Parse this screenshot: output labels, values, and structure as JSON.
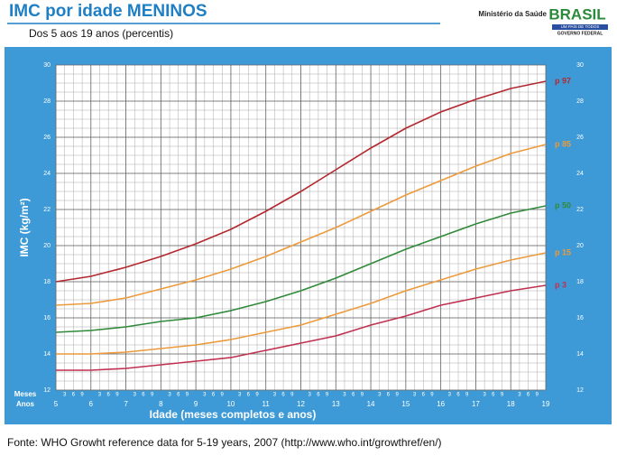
{
  "header": {
    "ministry": "Ministério da Saúde",
    "brand": "BRASIL",
    "motto": "UM PAÍS DE TODOS",
    "government": "GOVERNO FEDERAL"
  },
  "chart_data": {
    "type": "line",
    "title": "IMC por idade MENINOS",
    "subtitle": "Dos 5 aos 19 anos (percentis)",
    "x_label": "Idade (meses completos e anos)",
    "y_label": "IMC (kg/m²)",
    "row_labels": {
      "months": "Meses",
      "years": "Anos"
    },
    "month_labels": [
      "3",
      "6",
      "9"
    ],
    "x": [
      5,
      6,
      7,
      8,
      9,
      10,
      11,
      12,
      13,
      14,
      15,
      16,
      17,
      18,
      19
    ],
    "xlim": [
      5,
      19
    ],
    "xticks": [
      5,
      6,
      7,
      8,
      9,
      10,
      11,
      12,
      13,
      14,
      15,
      16,
      17,
      18,
      19
    ],
    "ylim": [
      12,
      30
    ],
    "yticks": [
      12,
      14,
      16,
      18,
      20,
      22,
      24,
      26,
      28,
      30
    ],
    "grid": true,
    "series": [
      {
        "name": "p 97",
        "color": "#b3282f",
        "values": [
          18.0,
          18.3,
          18.8,
          19.4,
          20.1,
          20.9,
          21.9,
          23.0,
          24.2,
          25.4,
          26.5,
          27.4,
          28.1,
          28.7,
          29.1
        ]
      },
      {
        "name": "p 85",
        "color": "#ec9a3c",
        "values": [
          16.7,
          16.8,
          17.1,
          17.6,
          18.1,
          18.7,
          19.4,
          20.2,
          21.0,
          21.9,
          22.8,
          23.6,
          24.4,
          25.1,
          25.6
        ]
      },
      {
        "name": "p 50",
        "color": "#2f8a3a",
        "values": [
          15.2,
          15.3,
          15.5,
          15.8,
          16.0,
          16.4,
          16.9,
          17.5,
          18.2,
          19.0,
          19.8,
          20.5,
          21.2,
          21.8,
          22.2
        ]
      },
      {
        "name": "p 15",
        "color": "#ec9a3c",
        "values": [
          14.0,
          14.0,
          14.1,
          14.3,
          14.5,
          14.8,
          15.2,
          15.6,
          16.2,
          16.8,
          17.5,
          18.1,
          18.7,
          19.2,
          19.6
        ]
      },
      {
        "name": "p 3",
        "color": "#c0304f",
        "values": [
          13.1,
          13.1,
          13.2,
          13.4,
          13.6,
          13.8,
          14.2,
          14.6,
          15.0,
          15.6,
          16.1,
          16.7,
          17.1,
          17.5,
          17.8
        ]
      }
    ]
  },
  "footer": {
    "source": "Fonte: WHO Growht reference data for 5-19 years, 2007 (http://www.who.int/growthref/en/)"
  }
}
